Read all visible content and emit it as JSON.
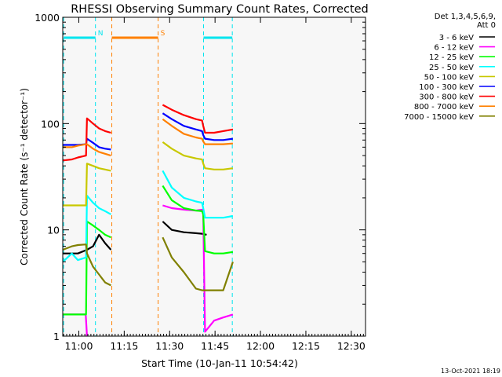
{
  "chart_data": {
    "type": "line",
    "title": "RHESSI Observing Summary Count Rates, Corrected",
    "xlabel": "Start Time (10-Jan-11 10:54:42)",
    "ylabel": "Corrected Count Rate (s⁻¹ detector⁻¹)",
    "yscale": "log",
    "ylim": [
      1,
      1000
    ],
    "xlim_minutes": [
      0,
      100
    ],
    "x_ticks": [
      {
        "label": "11:00",
        "min": 5.3
      },
      {
        "label": "11:15",
        "min": 20.3
      },
      {
        "label": "11:30",
        "min": 35.3
      },
      {
        "label": "11:45",
        "min": 50.3
      },
      {
        "label": "12:00",
        "min": 65.3
      },
      {
        "label": "12:15",
        "min": 80.3
      },
      {
        "label": "12:30",
        "min": 95.3
      }
    ],
    "y_ticks": [
      {
        "label": "1",
        "value": 1
      },
      {
        "label": "10",
        "value": 10
      },
      {
        "label": "100",
        "value": 100
      },
      {
        "label": "1000",
        "value": 1000
      }
    ],
    "legend_header": [
      "Det 1,3,4,5,6,9,",
      "Att 0"
    ],
    "grid": false,
    "legend_position": "right",
    "flags": [
      {
        "label": "N",
        "color": "#00e5ee",
        "segments": [
          [
            0.3,
            10.8
          ],
          [
            46.5,
            56.0
          ]
        ]
      },
      {
        "label": "S",
        "color": "#ff8000",
        "segments": [
          [
            16.2,
            31.5
          ]
        ]
      }
    ],
    "series": [
      {
        "name": "3 - 6 keV",
        "color": "#000000",
        "x": [
          0,
          5,
          8,
          10,
          12,
          14,
          15.9,
          31.5,
          33,
          36,
          40,
          44,
          46,
          47.5
        ],
        "y": [
          6,
          6,
          6.5,
          7,
          9,
          7.5,
          6.5,
          null,
          12,
          10,
          9.5,
          9.3,
          9.2,
          9
        ]
      },
      {
        "name": "6 - 12 keV",
        "color": "#ff00ff",
        "x": [
          0,
          5,
          7,
          7.6,
          8,
          31.5,
          33,
          36,
          40,
          44,
          46,
          46.4,
          47,
          50,
          53,
          56.2
        ],
        "y": [
          1.6,
          1.6,
          1.6,
          1.6,
          1,
          null,
          17,
          16,
          15.5,
          15.2,
          15.5,
          14,
          1.1,
          1.4,
          1.5,
          1.6
        ]
      },
      {
        "name": "12 - 25 keV",
        "color": "#00ff00",
        "x": [
          0,
          7.7,
          8,
          10,
          12,
          14,
          15.9,
          31.5,
          33,
          36,
          40,
          44,
          46,
          46.4,
          47,
          50,
          53,
          56.2
        ],
        "y": [
          1.6,
          1.6,
          12,
          11,
          10,
          9,
          8.5,
          null,
          26,
          19,
          16,
          15.2,
          15,
          14,
          6.3,
          6,
          6,
          6.2
        ]
      },
      {
        "name": "25 - 50 keV",
        "color": "#00ffff",
        "x": [
          0,
          3,
          5,
          7.7,
          8,
          10,
          12,
          14,
          15.9,
          31.5,
          33,
          36,
          40,
          44,
          46,
          46.4,
          47,
          50,
          53,
          56.2
        ],
        "y": [
          5,
          6,
          5.2,
          5.5,
          21,
          18,
          16,
          15,
          14,
          null,
          36,
          25,
          20,
          18.5,
          18,
          16,
          13,
          13,
          13,
          13.5
        ]
      },
      {
        "name": "50 - 100 keV",
        "color": "#c8c800",
        "x": [
          0,
          3,
          5,
          7.7,
          8,
          10,
          12,
          14,
          15.9,
          31.5,
          33,
          36,
          40,
          44,
          46,
          46.4,
          47,
          50,
          53,
          56.2
        ],
        "y": [
          17,
          17,
          17,
          17,
          42,
          40,
          38,
          37,
          36,
          null,
          67,
          58,
          50,
          47,
          46,
          42,
          38,
          37,
          37,
          38
        ]
      },
      {
        "name": "100 - 300 keV",
        "color": "#0000ff",
        "x": [
          0,
          3,
          5,
          7.7,
          8,
          10,
          12,
          14,
          15.9,
          31.5,
          33,
          36,
          40,
          44,
          46,
          46.4,
          47,
          50,
          53,
          56.2
        ],
        "y": [
          63,
          63,
          63,
          64,
          72,
          66,
          60,
          58,
          57,
          null,
          125,
          110,
          95,
          88,
          85,
          78,
          72,
          70,
          70,
          72
        ]
      },
      {
        "name": "300 - 800 keV",
        "color": "#ff0000",
        "x": [
          0,
          3,
          5,
          7.7,
          8,
          10,
          12,
          14,
          15.9,
          31.5,
          33,
          36,
          40,
          44,
          46,
          46.4,
          47,
          50,
          53,
          56.2
        ],
        "y": [
          45,
          46,
          48,
          50,
          112,
          100,
          90,
          85,
          82,
          null,
          150,
          135,
          120,
          110,
          107,
          95,
          82,
          82,
          85,
          88
        ]
      },
      {
        "name": "800 - 7000 keV",
        "color": "#ff8000",
        "x": [
          0,
          3,
          5,
          7.7,
          8,
          10,
          12,
          14,
          15.9,
          31.5,
          33,
          36,
          40,
          44,
          46,
          46.4,
          47,
          50,
          53,
          56.2
        ],
        "y": [
          60,
          60,
          62,
          64,
          64,
          58,
          54,
          52,
          50,
          null,
          110,
          95,
          80,
          74,
          72,
          68,
          64,
          64,
          64,
          65
        ]
      },
      {
        "name": "7000 - 15000 keV",
        "color": "#808000",
        "x": [
          0,
          3,
          5,
          7.7,
          8,
          10,
          12,
          14,
          15.9,
          31.5,
          33,
          36,
          40,
          44,
          46,
          46.4,
          47,
          50,
          53,
          56.2
        ],
        "y": [
          6.5,
          7,
          7.2,
          7.3,
          6,
          4.5,
          3.8,
          3.2,
          3,
          null,
          8.5,
          5.5,
          4,
          2.8,
          2.7,
          2.7,
          2.7,
          2.7,
          2.7,
          5
        ]
      }
    ]
  },
  "timestamp": "13-Oct-2021 18:19"
}
